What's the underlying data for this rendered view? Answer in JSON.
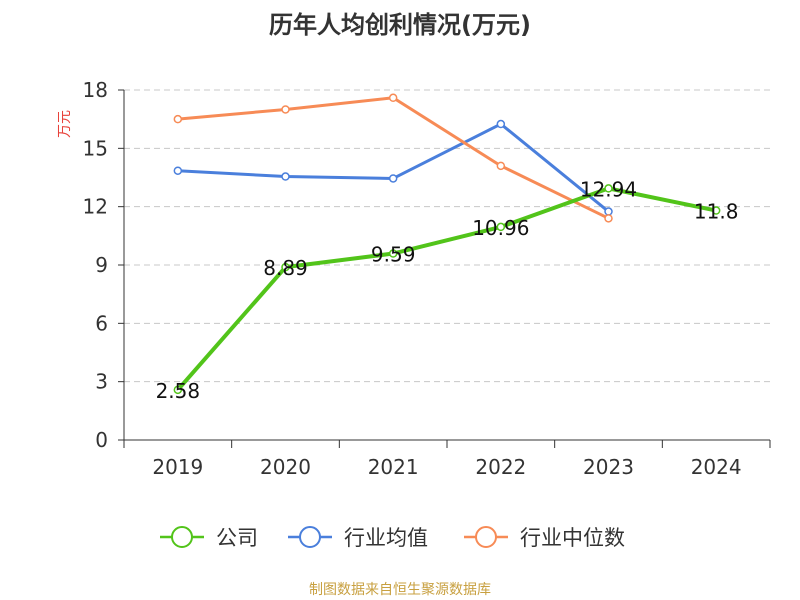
{
  "chart_data": {
    "type": "line",
    "title": "历年人均创利情况(万元)",
    "ylabel": "万元",
    "xlabel": "",
    "categories": [
      "2019",
      "2020",
      "2021",
      "2022",
      "2023",
      "2024"
    ],
    "ylim": [
      0,
      18
    ],
    "yticks": [
      0,
      3,
      6,
      9,
      12,
      15,
      18
    ],
    "grid": true,
    "legend_position": "bottom",
    "series": [
      {
        "name": "公司",
        "color": "#52c41a",
        "values": [
          2.58,
          8.89,
          9.59,
          10.96,
          12.94,
          11.8
        ],
        "labels": [
          "2.58",
          "8.89",
          "9.59",
          "10.96",
          "12.94",
          "11.8"
        ]
      },
      {
        "name": "行业均值",
        "color": "#4a7fdc",
        "values": [
          13.85,
          13.55,
          13.45,
          16.25,
          11.75,
          null
        ]
      },
      {
        "name": "行业中位数",
        "color": "#f78b56",
        "values": [
          16.5,
          17.0,
          17.6,
          14.1,
          11.4,
          null
        ]
      }
    ],
    "ylabel_color": "#e8423a",
    "source": "制图数据来自恒生聚源数据库",
    "source_color": "#c8a040"
  }
}
